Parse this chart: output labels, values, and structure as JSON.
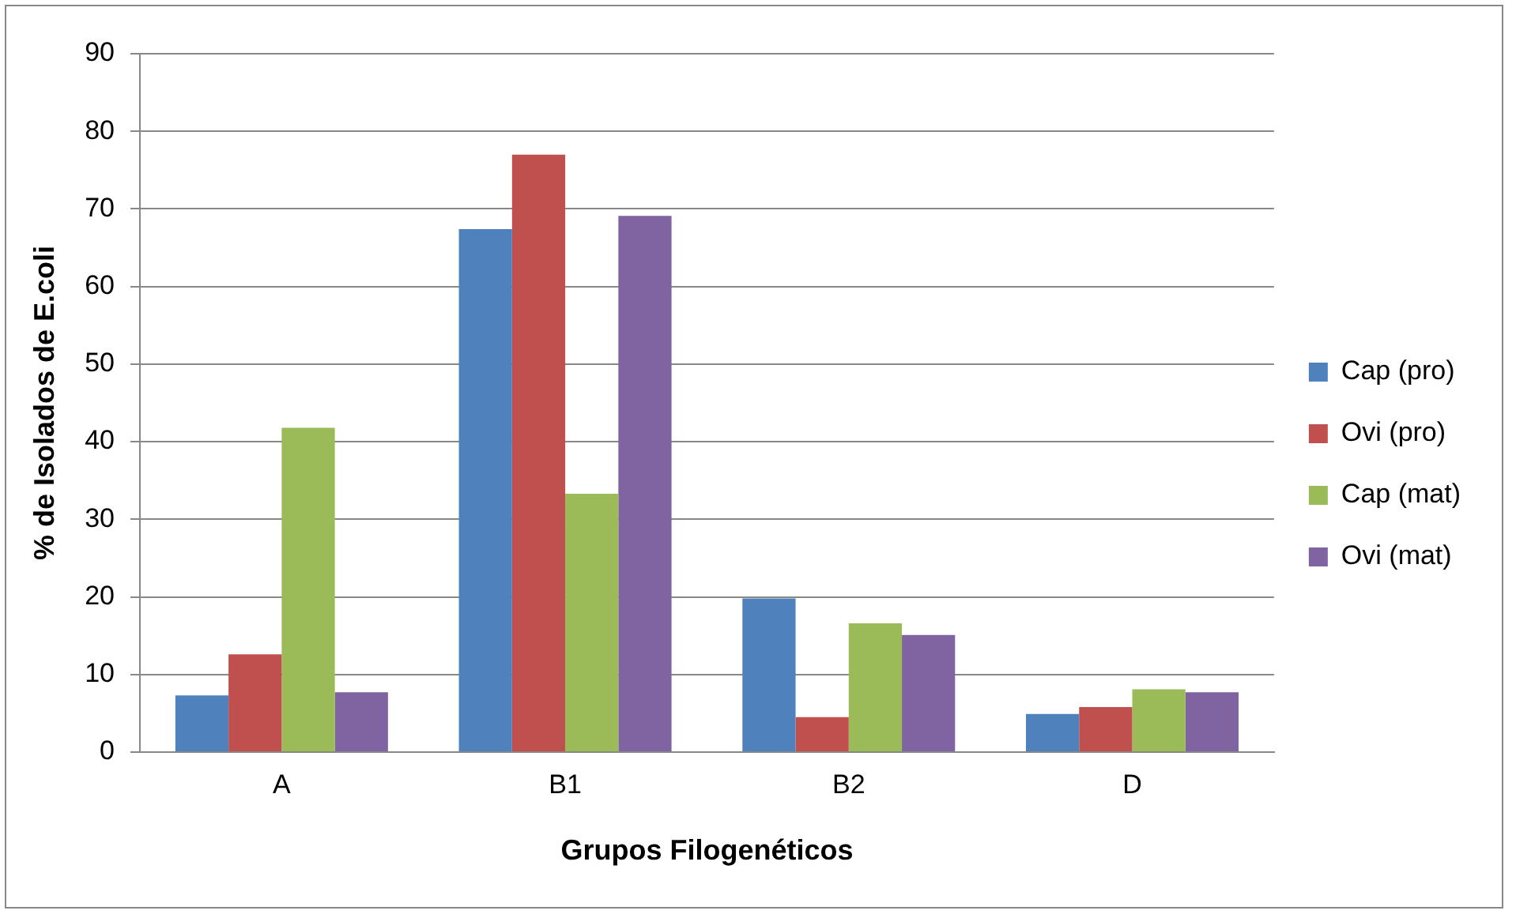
{
  "chart_data": {
    "type": "bar",
    "xlabel": "Grupos Filogenéticos",
    "ylabel": "% de Isolados de E.coli",
    "categories": [
      "A",
      "B1",
      "B2",
      "D"
    ],
    "series": [
      {
        "name": "Cap (pro)",
        "color": "#4f81bd",
        "values": [
          7.3,
          67.4,
          19.8,
          4.9
        ]
      },
      {
        "name": "Ovi (pro)",
        "color": "#c0504d",
        "values": [
          12.6,
          77,
          4.5,
          5.8
        ]
      },
      {
        "name": "Cap (mat)",
        "color": "#9bbb59",
        "values": [
          41.8,
          33.3,
          16.6,
          8.1
        ]
      },
      {
        "name": "Ovi (mat)",
        "color": "#8064a2",
        "values": [
          7.7,
          69.1,
          15.1,
          7.7
        ]
      }
    ],
    "ylim": [
      0,
      90
    ],
    "yticks": [
      0,
      10,
      20,
      30,
      40,
      50,
      60,
      70,
      80,
      90
    ],
    "grid": "y",
    "legend": "right"
  }
}
